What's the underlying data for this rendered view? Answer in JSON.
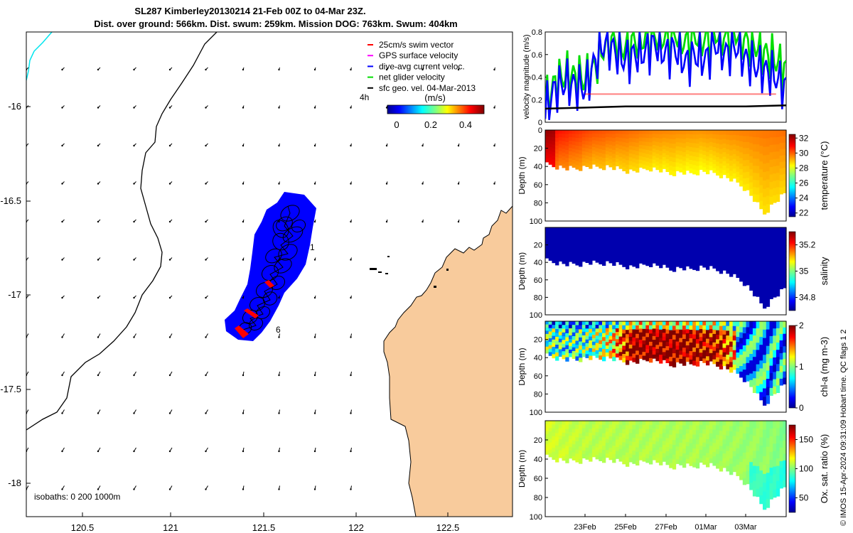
{
  "header": {
    "title_line1": "SL287 Kimberley20130214 21-Feb 00Z to 04-Mar 23Z.",
    "title_line2": "Dist. over ground: 566km. Dist. swum: 259km. Mission DOG: 763km. Swum: 404km"
  },
  "map": {
    "x_ticks": [
      "120.5",
      "121",
      "121.5",
      "122",
      "122.5"
    ],
    "y_ticks": [
      "-16",
      "-16.5",
      "-17",
      "-17.5",
      "-18"
    ],
    "isobaths_label": "isobaths: 0   200  1000m",
    "time_marker_label": "4h",
    "point_labels": [
      "1",
      "6"
    ],
    "legend": [
      {
        "label": "25cm/s swim vector",
        "color": "#ff0000"
      },
      {
        "label": "GPS surface velocity",
        "color": "#ff00ff"
      },
      {
        "label": "dive-avg current veloc.",
        "color": "#0000ff"
      },
      {
        "label": "net glider velocity",
        "color": "#00dd00"
      },
      {
        "label": "sfc geo. vel. 04-Mar-2013",
        "color": "#000000"
      }
    ],
    "colorbar": {
      "label": "(m/s)",
      "ticks": [
        "0",
        "0.2",
        "0.4"
      ]
    },
    "colors": {
      "land": "#f8cb9c",
      "track_fill": "#0000ff",
      "coastline": "#000000",
      "cyan_track": "#00e5ee"
    }
  },
  "chart_data": [
    {
      "type": "line",
      "title": "",
      "ylabel": "velocity magnitude (m/s)",
      "ylim": [
        0,
        0.8
      ],
      "y_ticks": [
        "0",
        "0.2",
        "0.4",
        "0.6",
        "0.8"
      ],
      "x_range_days": [
        0,
        12
      ],
      "series": [
        {
          "name": "net glider velocity",
          "color": "#00dd00",
          "x": [
            0,
            0.5,
            1,
            1.5,
            2,
            2.5,
            3,
            3.5,
            4,
            4.5,
            5,
            5.5,
            6,
            6.5,
            7,
            7.5,
            8,
            8.5,
            9,
            9.5,
            10,
            10.5,
            11,
            11.5,
            12
          ],
          "values": [
            0.15,
            0.35,
            0.42,
            0.4,
            0.38,
            0.5,
            0.7,
            0.72,
            0.65,
            0.72,
            0.75,
            0.78,
            0.76,
            0.8,
            0.7,
            0.78,
            0.72,
            0.8,
            0.75,
            0.8,
            0.72,
            0.68,
            0.6,
            0.55,
            0.45
          ]
        },
        {
          "name": "dive-avg current veloc.",
          "color": "#0000ff",
          "x": [
            0,
            0.5,
            1,
            1.5,
            2,
            2.5,
            3,
            3.5,
            4,
            4.5,
            5,
            5.5,
            6,
            6.5,
            7,
            7.5,
            8,
            8.5,
            9,
            9.5,
            10,
            10.5,
            11,
            11.5,
            12
          ],
          "values": [
            0.1,
            0.3,
            0.35,
            0.32,
            0.3,
            0.55,
            0.72,
            0.62,
            0.55,
            0.6,
            0.62,
            0.7,
            0.6,
            0.65,
            0.52,
            0.6,
            0.55,
            0.7,
            0.6,
            0.68,
            0.55,
            0.5,
            0.45,
            0.4,
            0.3
          ]
        },
        {
          "name": "25cm/s swim vector",
          "color": "#ff0000",
          "x": [
            2,
            11.5
          ],
          "values": [
            0.25,
            0.25
          ]
        },
        {
          "name": "sfc geo. vel.",
          "color": "#000000",
          "x": [
            0,
            2,
            4,
            6,
            8,
            10,
            12
          ],
          "values": [
            0.12,
            0.13,
            0.14,
            0.14,
            0.14,
            0.14,
            0.15
          ]
        }
      ]
    },
    {
      "type": "heatmap",
      "ylabel": "Depth (m)",
      "colorbar_label": "temperature (°C)",
      "ylim": [
        100,
        0
      ],
      "y_ticks": [
        "0",
        "20",
        "40",
        "60",
        "80",
        "100"
      ],
      "colorbar_ticks": [
        "22",
        "24",
        "26",
        "28",
        "30",
        "32"
      ],
      "value_range": [
        21.5,
        32.5
      ],
      "bottom_depth_profile": [
        38,
        40,
        42,
        42,
        40,
        41,
        40,
        43,
        45,
        44,
        42,
        44,
        48,
        46,
        48,
        45,
        47,
        50,
        55,
        62,
        75,
        92,
        80,
        70
      ],
      "values": [
        31,
        30.6,
        30.2,
        30.0,
        29.8,
        29.6,
        29.5,
        29.4,
        29.5,
        29.6,
        29.7,
        29.8
      ]
    },
    {
      "type": "heatmap",
      "ylabel": "Depth (m)",
      "colorbar_label": "salinity",
      "ylim": [
        100,
        0
      ],
      "y_ticks": [
        "20",
        "40",
        "60",
        "80",
        "100"
      ],
      "colorbar_ticks": [
        "34.8",
        "35",
        "35.2"
      ],
      "value_range": [
        34.7,
        35.3
      ],
      "bottom_depth_profile": [
        38,
        40,
        42,
        42,
        40,
        41,
        40,
        43,
        45,
        44,
        42,
        44,
        48,
        46,
        48,
        45,
        47,
        50,
        55,
        62,
        75,
        92,
        80,
        70
      ],
      "values": [
        34.72,
        34.72,
        34.72,
        34.72,
        34.72,
        34.72,
        34.72,
        34.72,
        34.72,
        34.72,
        34.72,
        34.72
      ]
    },
    {
      "type": "heatmap",
      "ylabel": "Depth (m)",
      "colorbar_label": "chl-a (mg m-3)",
      "ylim": [
        100,
        0
      ],
      "y_ticks": [
        "20",
        "40",
        "60",
        "80",
        "100"
      ],
      "colorbar_ticks": [
        "0",
        "1",
        "2"
      ],
      "value_range": [
        0,
        2
      ],
      "bottom_depth_profile": [
        38,
        40,
        42,
        42,
        40,
        41,
        40,
        43,
        45,
        44,
        42,
        44,
        48,
        46,
        48,
        45,
        47,
        50,
        55,
        62,
        75,
        92,
        80,
        70
      ],
      "values": [
        0.9,
        0.8,
        0.9,
        1.2,
        2.0,
        2.0,
        2.0,
        1.9,
        1.8,
        1.2,
        0.9,
        0.7
      ]
    },
    {
      "type": "heatmap",
      "ylabel": "Depth (m)",
      "colorbar_label": "Ox. sat. ratio (%)",
      "ylim": [
        100,
        0
      ],
      "y_ticks": [
        "20",
        "40",
        "60",
        "80",
        "100"
      ],
      "colorbar_ticks": [
        "50",
        "100",
        "150"
      ],
      "value_range": [
        25,
        175
      ],
      "bottom_depth_profile": [
        38,
        40,
        42,
        42,
        40,
        41,
        40,
        43,
        45,
        44,
        42,
        44,
        48,
        46,
        48,
        45,
        47,
        50,
        55,
        62,
        75,
        92,
        80,
        70
      ],
      "values": [
        112,
        110,
        108,
        108,
        107,
        107,
        106,
        106,
        105,
        104,
        103,
        100
      ],
      "x_ticks": [
        "23Feb",
        "25Feb",
        "27Feb",
        "01Mar",
        "03Mar"
      ]
    }
  ],
  "footer": {
    "credit": "© IMOS 15-Apr-2024 09:31:09 Hobart time. QC flags 1  2"
  }
}
